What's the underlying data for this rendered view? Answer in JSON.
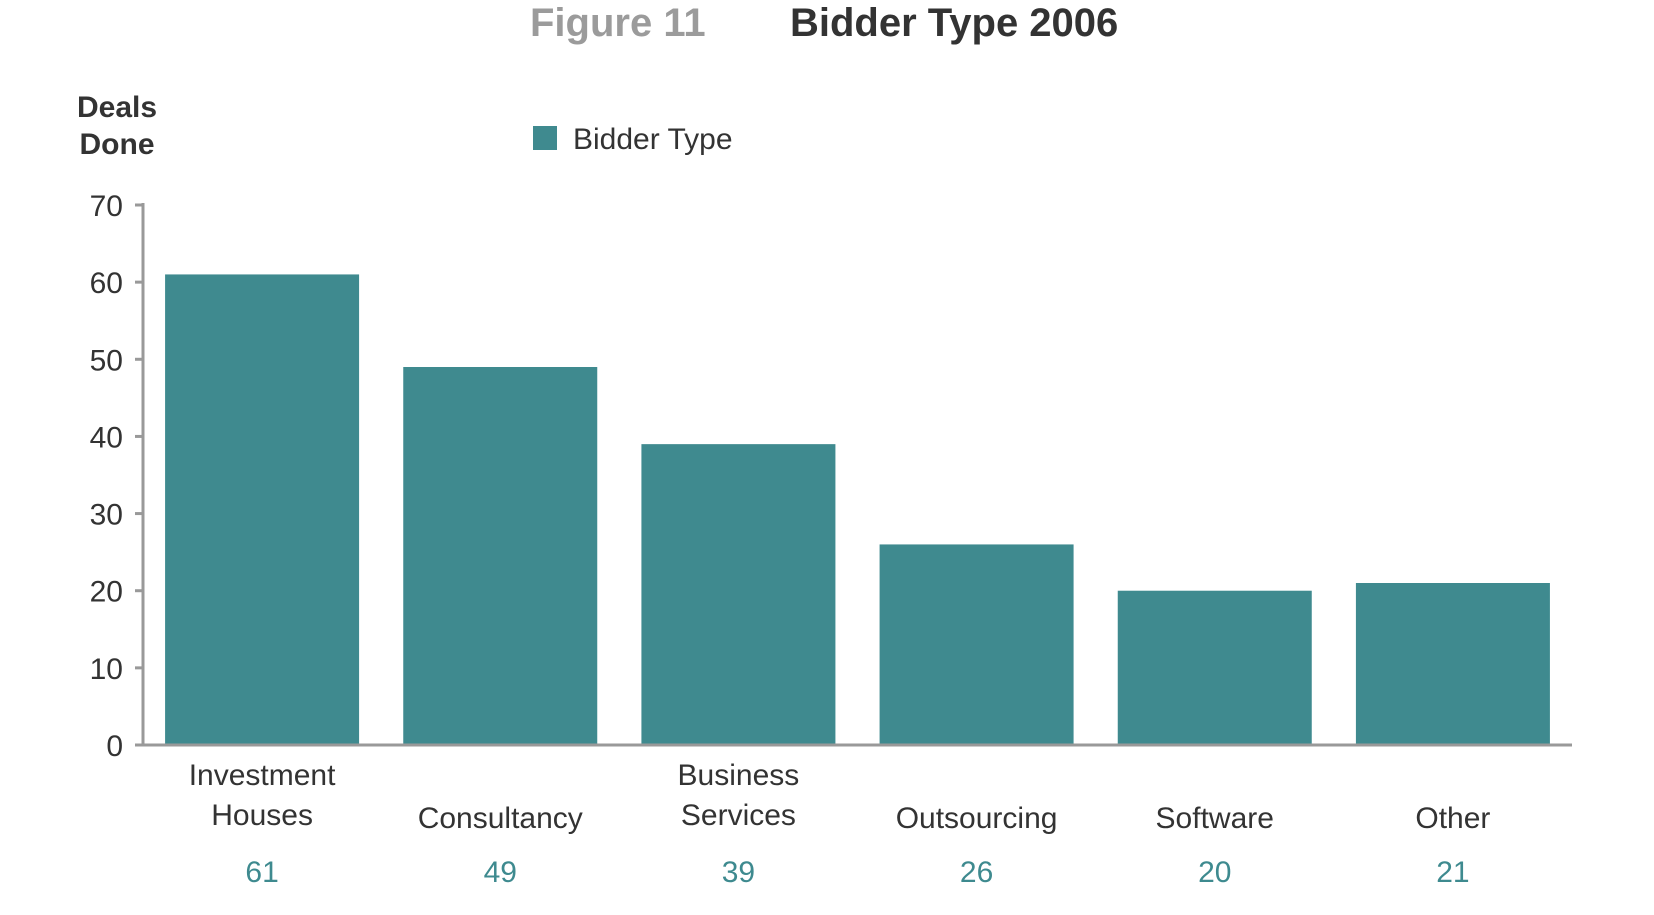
{
  "chart_data": {
    "type": "bar",
    "figure_label": "Figure 11",
    "title": "Bidder Type 2006",
    "ylabel": [
      "Deals",
      "Done"
    ],
    "xlabel": "",
    "ylim": [
      0,
      70
    ],
    "yticks": [
      0,
      10,
      20,
      30,
      40,
      50,
      60,
      70
    ],
    "grid": false,
    "legend": {
      "position": "top-center",
      "entries": [
        "Bidder Type"
      ]
    },
    "categories": [
      [
        "Investment",
        "Houses"
      ],
      [
        "Consultancy"
      ],
      [
        "Business",
        "Services"
      ],
      [
        "Outsourcing"
      ],
      [
        "Software"
      ],
      [
        "Other"
      ]
    ],
    "series": [
      {
        "name": "Bidder Type",
        "color": "#3f8a8f",
        "values": [
          61,
          49,
          39,
          26,
          20,
          21
        ]
      }
    ],
    "value_labels": [
      "61",
      "49",
      "39",
      "26",
      "20",
      "21"
    ],
    "colors": {
      "bar": "#3f8a8f",
      "value_text": "#3e8a8f",
      "axis": "#999999"
    }
  }
}
